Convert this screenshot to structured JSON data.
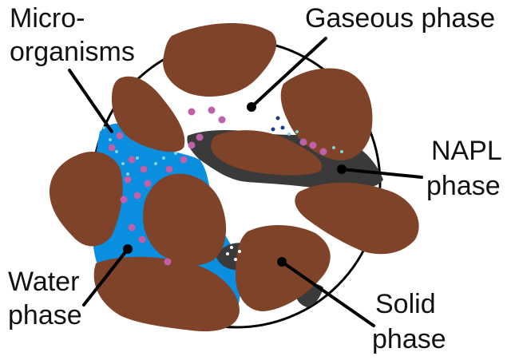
{
  "diagram": {
    "labels": {
      "microorganisms": [
        "Micro-",
        "organisms"
      ],
      "gaseous": [
        "Gaseous phase"
      ],
      "napl": [
        "NAPL",
        "phase"
      ],
      "water": [
        "Water",
        "phase"
      ],
      "solid": [
        "Solid",
        "phase"
      ]
    },
    "colors": {
      "solid": "#7f4329",
      "water": "#0a8ee0",
      "napl": "#3a3a3a",
      "gas": "#ffffff",
      "outline": "#000000",
      "microbe": "#c060a8",
      "microbe_small": "#7fd6d6",
      "gas_bubble": "#1a3a8a"
    }
  }
}
